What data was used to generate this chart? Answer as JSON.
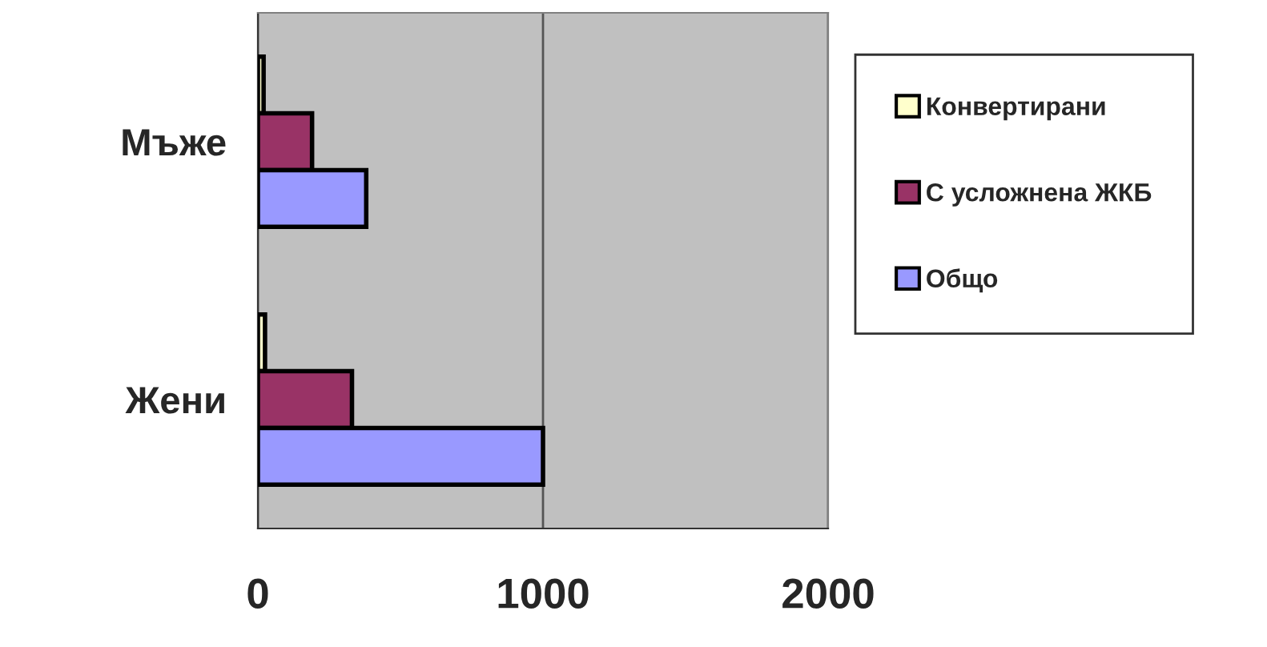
{
  "chart_data": {
    "type": "bar",
    "orientation": "horizontal",
    "categories": [
      "Мъже",
      "Жени"
    ],
    "series": [
      {
        "name": "Конвертирани",
        "color": "#ffffcc",
        "values": [
          20,
          25
        ]
      },
      {
        "name": "С усложнена ЖКБ",
        "color": "#993366",
        "values": [
          190,
          330
        ]
      },
      {
        "name": "Общо",
        "color": "#9999ff",
        "values": [
          380,
          1000
        ]
      }
    ],
    "xlim": [
      0,
      2000
    ],
    "xticks": [
      0,
      1000,
      2000
    ],
    "grid": "x",
    "legend": "right"
  }
}
